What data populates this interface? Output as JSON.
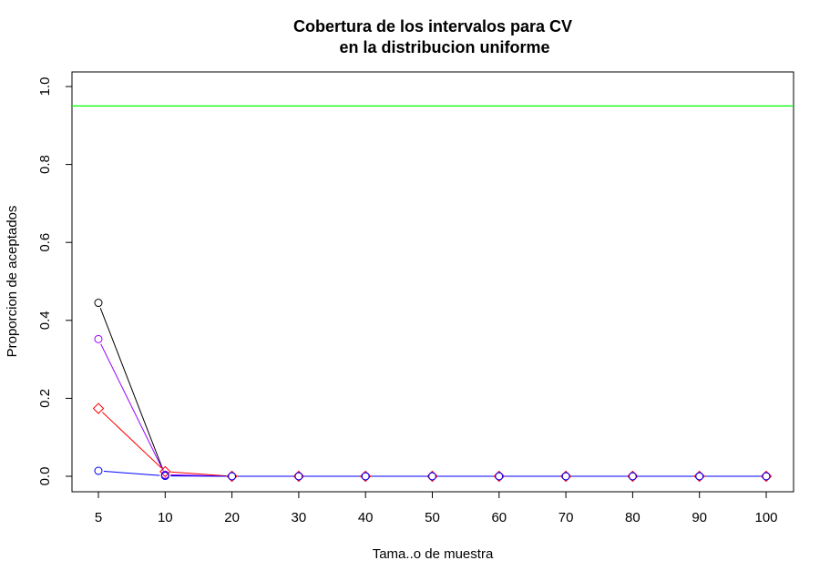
{
  "chart_data": {
    "type": "line",
    "title_lines": [
      "Cobertura de los intervalos para CV",
      "en la distribucion uniforme"
    ],
    "xlabel": "Tama..o de muestra",
    "ylabel": "Proporcion de aceptados",
    "categories": [
      "5",
      "10",
      "20",
      "30",
      "40",
      "50",
      "60",
      "70",
      "80",
      "90",
      "100"
    ],
    "yticks": [
      "0.0",
      "0.2",
      "0.4",
      "0.6",
      "0.8",
      "1.0"
    ],
    "ylim": [
      0,
      1.0
    ],
    "reference_line": {
      "y": 0.95,
      "color": "#00ff00"
    },
    "grid": false,
    "series": [
      {
        "color": "#000000",
        "marker": "circle",
        "values": [
          0.445,
          0.002,
          0,
          0,
          0,
          0,
          0,
          0,
          0,
          0,
          0
        ]
      },
      {
        "color": "#9900ff",
        "marker": "circle",
        "values": [
          0.352,
          0.004,
          0,
          0,
          0,
          0,
          0,
          0,
          0,
          0,
          0
        ]
      },
      {
        "color": "#ff0000",
        "marker": "diamond",
        "values": [
          0.174,
          0.012,
          0,
          0,
          0,
          0,
          0,
          0,
          0,
          0,
          0
        ]
      },
      {
        "color": "#0000ff",
        "marker": "circle",
        "values": [
          0.014,
          0.001,
          0,
          0,
          0,
          0,
          0,
          0,
          0,
          0,
          0
        ]
      }
    ]
  }
}
